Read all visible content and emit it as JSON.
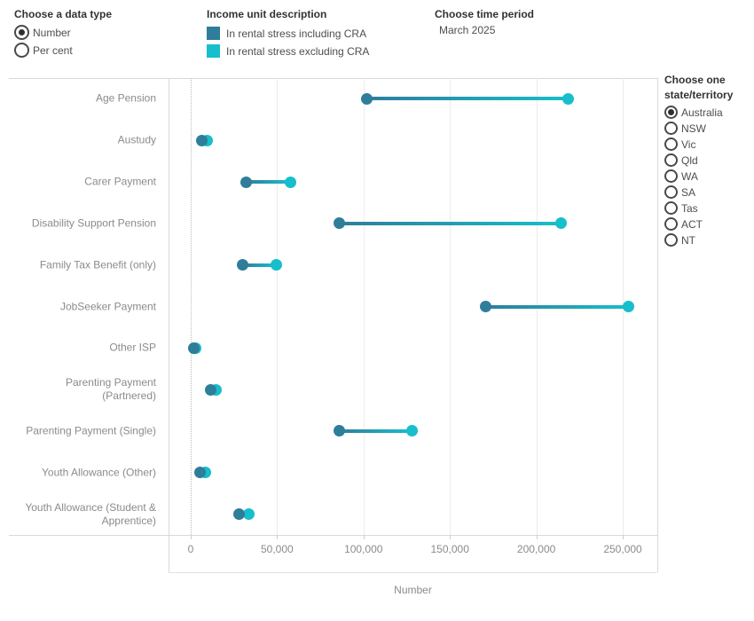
{
  "controls": {
    "data_type": {
      "title": "Choose a data type",
      "options": [
        {
          "label": "Number",
          "selected": true
        },
        {
          "label": "Per cent",
          "selected": false
        }
      ]
    },
    "legend": {
      "title": "Income unit description",
      "items": [
        {
          "label": "In rental stress including CRA",
          "color": "#2E7E9B"
        },
        {
          "label": "In rental stress excluding CRA",
          "color": "#17BECB"
        }
      ]
    },
    "time_period": {
      "title": "Choose time period",
      "value": "March 2025"
    },
    "state": {
      "title": "Choose one state/territory",
      "options": [
        {
          "label": "Australia",
          "selected": true
        },
        {
          "label": "NSW",
          "selected": false
        },
        {
          "label": "Vic",
          "selected": false
        },
        {
          "label": "Qld",
          "selected": false
        },
        {
          "label": "WA",
          "selected": false
        },
        {
          "label": "SA",
          "selected": false
        },
        {
          "label": "Tas",
          "selected": false
        },
        {
          "label": "ACT",
          "selected": false
        },
        {
          "label": "NT",
          "selected": false
        }
      ]
    }
  },
  "chart_data": {
    "type": "scatter",
    "subtype": "dumbbell",
    "orientation": "horizontal",
    "title": "",
    "categories": [
      "Age Pension",
      "Austudy",
      "Carer Payment",
      "Disability Support Pension",
      "Family Tax Benefit (only)",
      "JobSeeker Payment",
      "Other ISP",
      "Parenting Payment (Partnered)",
      "Parenting Payment (Single)",
      "Youth Allowance (Other)",
      "Youth Allowance (Student & Apprentice)"
    ],
    "series": [
      {
        "name": "In rental stress including CRA",
        "color": "#2E7E9B",
        "values": [
          102000,
          6500,
          32000,
          86000,
          30000,
          170500,
          2000,
          11500,
          86000,
          5500,
          28000
        ]
      },
      {
        "name": "In rental stress excluding CRA",
        "color": "#17BECB",
        "values": [
          218500,
          9500,
          58000,
          214500,
          49500,
          253500,
          3000,
          14500,
          128000,
          8500,
          33500
        ]
      }
    ],
    "xlabel": "Number",
    "x_ticks": [
      0,
      50000,
      100000,
      150000,
      200000,
      250000
    ],
    "x_tick_labels": [
      "0",
      "50,000",
      "100,000",
      "150,000",
      "200,000",
      "250,000"
    ],
    "xlim": [
      -12800,
      270000
    ],
    "grid": true,
    "legend_position": "top"
  }
}
